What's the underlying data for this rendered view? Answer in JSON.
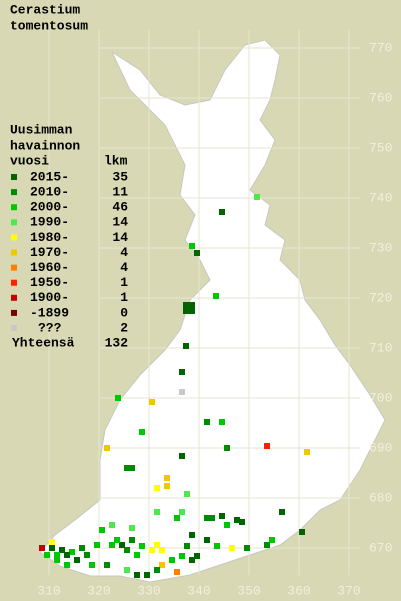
{
  "title_lines": [
    "Cerastium",
    "tomentosum"
  ],
  "legend": {
    "heading_lines": [
      "Uusimman",
      "havainnon"
    ],
    "year_header": "vuosi",
    "count_header": "lkm",
    "entries": [
      {
        "label": "2015-",
        "count": 35,
        "color": "#006400"
      },
      {
        "label": "2010-",
        "count": 11,
        "color": "#008c00"
      },
      {
        "label": "2000-",
        "count": 46,
        "color": "#00c800"
      },
      {
        "label": "1990-",
        "count": 14,
        "color": "#50e650"
      },
      {
        "label": "1980-",
        "count": 14,
        "color": "#ffff00"
      },
      {
        "label": "1970-",
        "count": 4,
        "color": "#f0c800"
      },
      {
        "label": "1960-",
        "count": 4,
        "color": "#ff8000"
      },
      {
        "label": "1950-",
        "count": 1,
        "color": "#ff2000"
      },
      {
        "label": "1900-",
        "count": 1,
        "color": "#c80000"
      },
      {
        "label": "-1899",
        "count": 0,
        "color": "#780000"
      },
      {
        "label": "???",
        "count": 2,
        "color": "#c8c8c8"
      }
    ],
    "total_label": "Yhteensä",
    "total": 132
  },
  "grid": {
    "x_labels": [
      310,
      320,
      330,
      340,
      350,
      360,
      370
    ],
    "y_labels": [
      770,
      760,
      750,
      740,
      730,
      720,
      710,
      700,
      690,
      680,
      670
    ]
  }
}
